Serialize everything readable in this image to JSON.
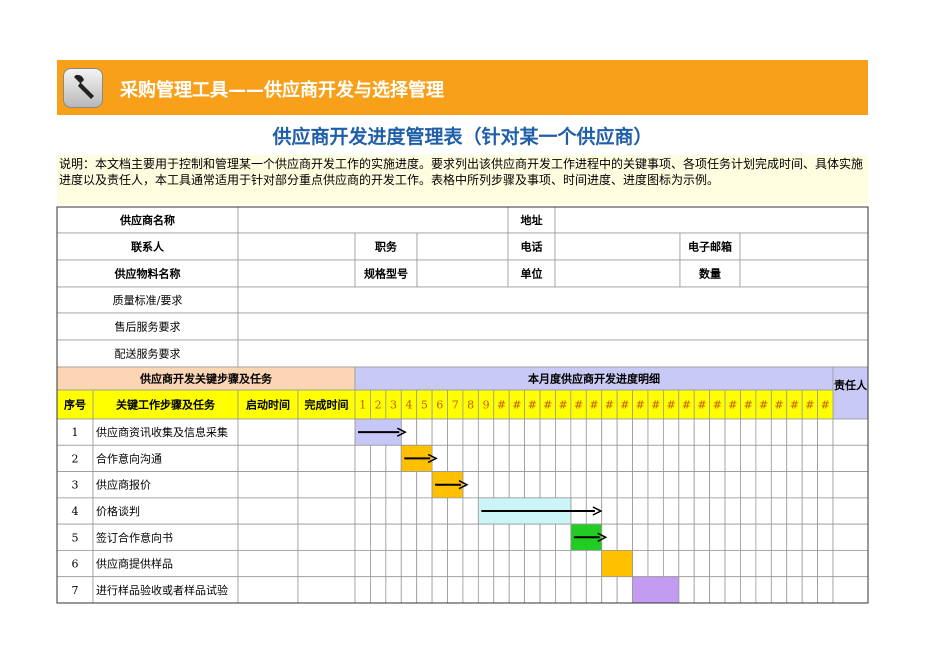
{
  "header": {
    "title": "采购管理工具——供应商开发与选择管理"
  },
  "title": "供应商开发进度管理表（针对某一个供应商）",
  "description": "说明：本文档主要用于控制和管理某一个供应商开发工作的实施进度。要求列出该供应商开发工作进程中的关键事项、各项任务计划完成时间、具体实施进度以及责任人，本工具通常适用于针对部分重点供应商的开发工作。表格中所列步骤及事项、时间进度、进度图标为示例。",
  "info_rows": [
    [
      "供应商名称",
      "地址"
    ],
    [
      "联系人",
      "职务",
      "电话",
      "电子邮箱"
    ],
    [
      "供应物料名称",
      "规格型号",
      "单位",
      "数量"
    ],
    [
      "质量标准/要求"
    ],
    [
      "售后服务要求"
    ],
    [
      "配送服务要求"
    ]
  ],
  "schedule": {
    "section_left": "供应商开发关键步骤及任务",
    "section_right": "本月度供应商开发进度明细",
    "owner": "责任人",
    "columns": [
      "序号",
      "关键工作步骤及任务",
      "启动时间",
      "完成时间"
    ],
    "days": [
      "1",
      "2",
      "3",
      "4",
      "5",
      "6",
      "7",
      "8",
      "9",
      "#",
      "#",
      "#",
      "#",
      "#",
      "#",
      "#",
      "#",
      "#",
      "#",
      "#",
      "#",
      "#",
      "#",
      "#",
      "#",
      "#",
      "#",
      "#",
      "#",
      "#",
      "#"
    ],
    "tasks": [
      {
        "no": "1",
        "name": "供应商资讯收集及信息采集",
        "start_day": 1,
        "end_day": 3,
        "color": "#c6c6f7",
        "arrow": true
      },
      {
        "no": "2",
        "name": "合作意向沟通",
        "start_day": 4,
        "end_day": 5,
        "color": "#ffc000",
        "arrow": true
      },
      {
        "no": "3",
        "name": "供应商报价",
        "start_day": 6,
        "end_day": 7,
        "color": "#ffc000",
        "arrow": true
      },
      {
        "no": "4",
        "name": "价格谈判",
        "start_day": 9,
        "end_day": 14,
        "color": "#ccf5f7",
        "arrow": true
      },
      {
        "no": "5",
        "name": "签订合作意向书",
        "start_day": 15,
        "end_day": 16,
        "color": "#22cc22",
        "arrow": true
      },
      {
        "no": "6",
        "name": "供应商提供样品",
        "start_day": 17,
        "end_day": 18,
        "color": "#ffc000",
        "arrow": false
      },
      {
        "no": "7",
        "name": "进行样品验收或者样品试验",
        "start_day": 19,
        "end_day": 21,
        "color": "#c39bf0",
        "arrow": false
      }
    ]
  }
}
